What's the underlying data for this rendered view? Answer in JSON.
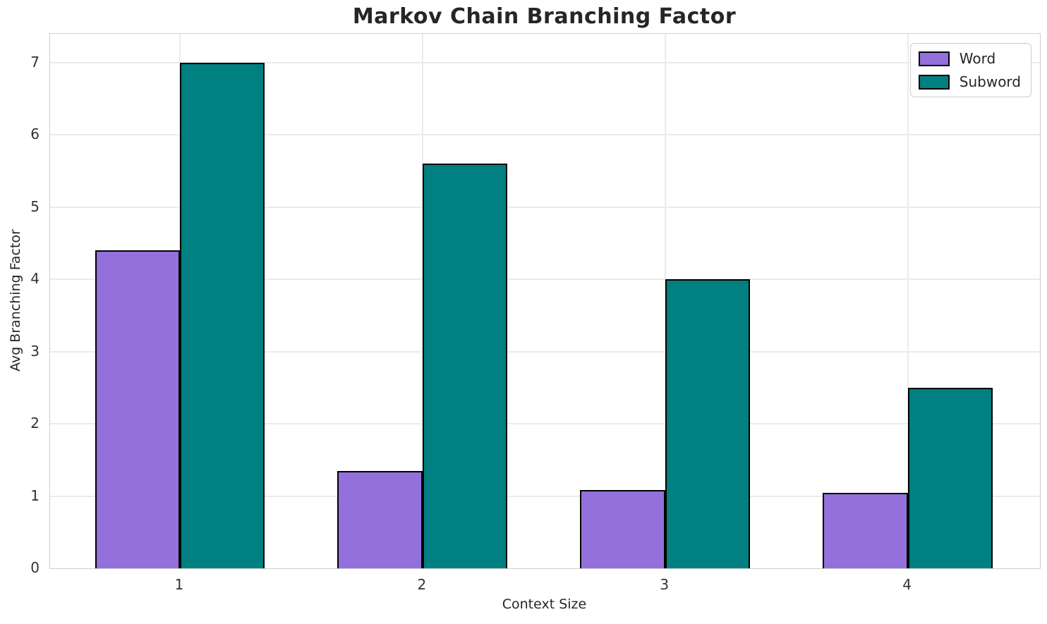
{
  "chart_data": {
    "type": "bar",
    "title": "Markov Chain Branching Factor",
    "xlabel": "Context Size",
    "ylabel": "Avg Branching Factor",
    "categories": [
      "1",
      "2",
      "3",
      "4"
    ],
    "series": [
      {
        "name": "Word",
        "color": "#9370DB",
        "values": [
          4.4,
          1.35,
          1.08,
          1.04
        ]
      },
      {
        "name": "Subword",
        "color": "#008080",
        "values": [
          7.0,
          5.6,
          4.0,
          2.5
        ]
      }
    ],
    "ylim": [
      0,
      7.4
    ],
    "yticks": [
      0,
      1,
      2,
      3,
      4,
      5,
      6,
      7
    ],
    "xlim": [
      0.465,
      4.545
    ],
    "bar_width": 0.35,
    "bar_edge_color": "#000000",
    "grid": true,
    "legend_position": "upper right"
  },
  "colors": {
    "grid": "#ebebeb",
    "spine": "#cfcfcf",
    "title_text": "#262626",
    "tick_text": "#333333"
  }
}
